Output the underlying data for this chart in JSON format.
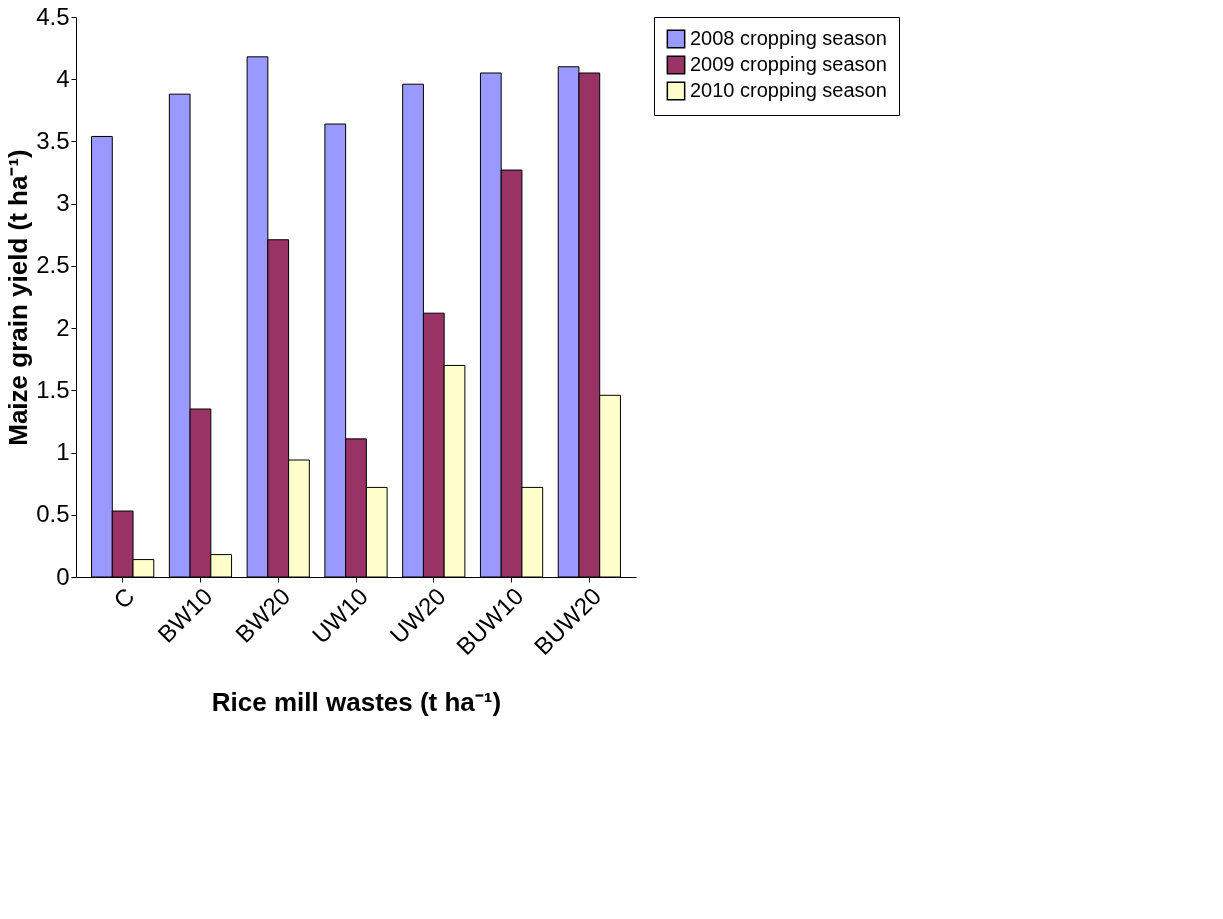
{
  "chart_data": {
    "type": "bar",
    "xlabel": "Rice mill wastes (t ha⁻¹)",
    "ylabel": "Maize grain yield (t ha⁻¹)",
    "categories": [
      "C",
      "BW10",
      "BW20",
      "UW10",
      "UW20",
      "BUW10",
      "BUW20"
    ],
    "series": [
      {
        "name": "2008 cropping season",
        "color": "#9999ff",
        "values": [
          3.54,
          3.88,
          4.18,
          3.64,
          3.96,
          4.05,
          4.1
        ]
      },
      {
        "name": "2009 cropping season",
        "color": "#993366",
        "values": [
          0.53,
          1.35,
          2.71,
          1.11,
          2.12,
          3.27,
          4.05
        ]
      },
      {
        "name": "2010 cropping season",
        "color": "#ffffcc",
        "values": [
          0.14,
          0.18,
          0.94,
          0.72,
          1.7,
          0.72,
          1.46
        ]
      }
    ],
    "ylim": [
      0,
      4.5
    ],
    "yticks": [
      0,
      0.5,
      1,
      1.5,
      2,
      2.5,
      3,
      3.5,
      4,
      4.5
    ],
    "grid": false,
    "legend": "right"
  }
}
